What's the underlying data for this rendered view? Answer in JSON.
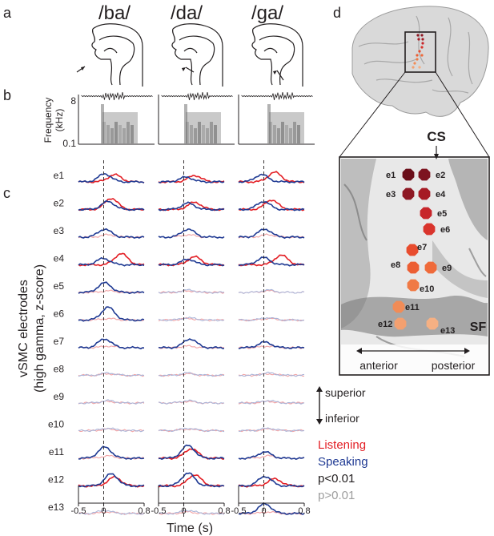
{
  "panels": {
    "a": "a",
    "b": "b",
    "c": "c",
    "d": "d"
  },
  "phonemes": [
    "/ba/",
    "/da/",
    "/ga/"
  ],
  "spectrogram": {
    "ylabel_line1": "Frequency",
    "ylabel_line2": "(kHz)",
    "tick_top": "8",
    "tick_bottom": "0.1"
  },
  "traces": {
    "ylabel_line1": "vSMC electrodes",
    "ylabel_line2": "(high gamma, z-score)",
    "xlabel": "Time (s)",
    "xticks": [
      "-0.5",
      "0",
      "0.8"
    ],
    "electrodes": [
      "e1",
      "e2",
      "e3",
      "e4",
      "e5",
      "e6",
      "e7",
      "e8",
      "e9",
      "e10",
      "e11",
      "e12",
      "e13"
    ]
  },
  "orientation": {
    "superior": "superior",
    "inferior": "inferior"
  },
  "legend": {
    "listening": "Listening",
    "speaking": "Speaking",
    "significant": "p<0.01",
    "nonsignificant": "p>0.01"
  },
  "colors": {
    "listening": "#e31e24",
    "speaking": "#1f3a93",
    "listening_faint": "#f2a3a5",
    "speaking_faint": "#a9b4d8",
    "nonsig_text": "#9d9d9d"
  },
  "brain": {
    "cs_label": "CS",
    "sf_label": "SF",
    "anterior": "anterior",
    "posterior": "posterior",
    "electrode_labels": [
      "e1",
      "e2",
      "e3",
      "e4",
      "e5",
      "e6",
      "e7",
      "e8",
      "e9",
      "e10",
      "e11",
      "e12",
      "e13"
    ],
    "electrode_colors": [
      "#6b0f1a",
      "#7d1420",
      "#8e1823",
      "#a61b24",
      "#c7252a",
      "#d9342c",
      "#e84c2e",
      "#ec5e33",
      "#ef6a3a",
      "#f07a45",
      "#f18c57",
      "#f3a070",
      "#f5b083"
    ]
  }
}
